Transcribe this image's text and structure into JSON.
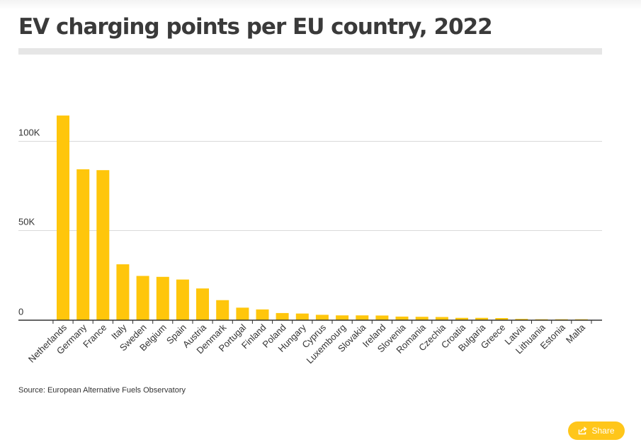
{
  "title": "EV charging points per EU country, 2022",
  "source": "Source: European Alternative Fuels Observatory",
  "share": {
    "label": "Share",
    "icon": "share-icon"
  },
  "colors": {
    "bar": "#ffc60b",
    "grid": "#d9d9d9",
    "axis": "#333333",
    "title": "#3a3a3a",
    "button": "#ffc61a"
  },
  "chart_data": {
    "type": "bar",
    "title": "EV charging points per EU country, 2022",
    "xlabel": "",
    "ylabel": "",
    "ylim": [
      0,
      120000
    ],
    "yticks": [
      {
        "value": 0,
        "label": "0"
      },
      {
        "value": 50000,
        "label": "50K"
      },
      {
        "value": 100000,
        "label": "100K"
      }
    ],
    "grid": true,
    "categories": [
      "Netherlands",
      "Germany",
      "France",
      "Italy",
      "Sweden",
      "Belgium",
      "Spain",
      "Austria",
      "Denmark",
      "Portugal",
      "Finland",
      "Poland",
      "Hungary",
      "Cyprus",
      "Luxembourg",
      "Slovakia",
      "Ireland",
      "Slovenia",
      "Romania",
      "Czechia",
      "Croatia",
      "Bulgaria",
      "Greece",
      "Latvia",
      "Lithuania",
      "Estonia",
      "Malta"
    ],
    "values": [
      114000,
      84000,
      83500,
      31000,
      24500,
      24000,
      22500,
      17500,
      11000,
      6800,
      5800,
      3800,
      3500,
      2800,
      2500,
      2500,
      2400,
      1800,
      1700,
      1600,
      1100,
      1100,
      1000,
      500,
      300,
      250,
      100
    ]
  }
}
